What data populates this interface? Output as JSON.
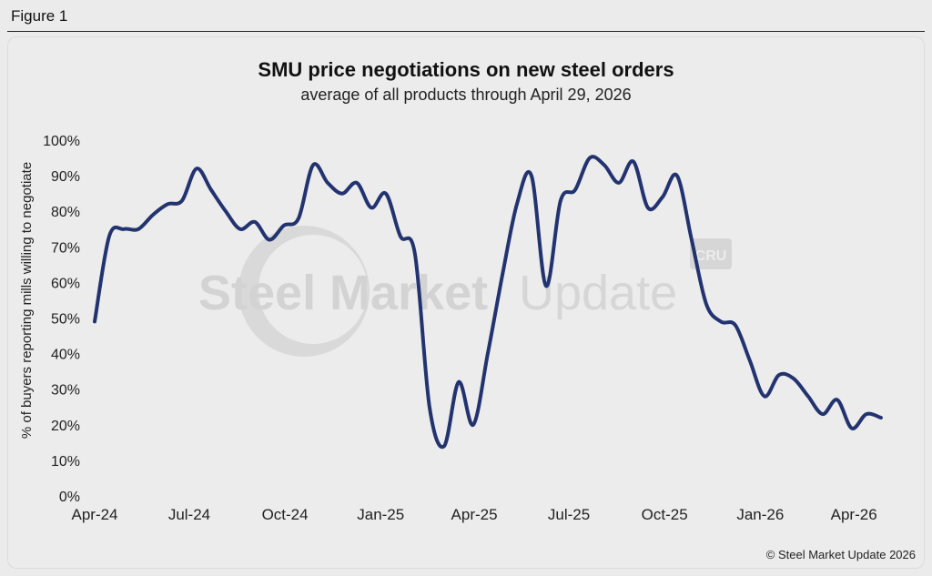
{
  "figure_label": "Figure 1",
  "copyright": "© Steel Market Update 2026",
  "watermark": {
    "text_bold": "Steel Market",
    "text_light": "Update",
    "badge": "CRU"
  },
  "colors": {
    "line": "#22336f",
    "background": "#ececec",
    "watermark": "#d6d6d6"
  },
  "chart_data": {
    "type": "line",
    "title": "SMU price negotiations on new steel orders",
    "subtitle": "average of all products through April 29, 2026",
    "xlabel": "",
    "ylabel": "% of buyers reporting mills willing to negotiate",
    "ylim": [
      0,
      100
    ],
    "yticks": [
      "0%",
      "10%",
      "20%",
      "30%",
      "40%",
      "50%",
      "60%",
      "70%",
      "80%",
      "90%",
      "100%"
    ],
    "xlim": [
      "2024-04-01",
      "2026-05-12"
    ],
    "xticks": [
      {
        "date": "2024-04-01",
        "label": "Apr-24"
      },
      {
        "date": "2024-07-01",
        "label": "Jul-24"
      },
      {
        "date": "2024-10-01",
        "label": "Oct-24"
      },
      {
        "date": "2025-01-01",
        "label": "Jan-25"
      },
      {
        "date": "2025-04-01",
        "label": "Apr-25"
      },
      {
        "date": "2025-07-01",
        "label": "Jul-25"
      },
      {
        "date": "2025-10-01",
        "label": "Oct-25"
      },
      {
        "date": "2026-01-01",
        "label": "Jan-26"
      },
      {
        "date": "2026-04-01",
        "label": "Apr-26"
      }
    ],
    "grid": false,
    "series": [
      {
        "values": [
          {
            "x": "2024-04-01",
            "y": 49
          },
          {
            "x": "2024-04-15",
            "y": 73
          },
          {
            "x": "2024-04-29",
            "y": 75
          },
          {
            "x": "2024-05-13",
            "y": 75
          },
          {
            "x": "2024-05-27",
            "y": 79
          },
          {
            "x": "2024-06-10",
            "y": 82
          },
          {
            "x": "2024-06-24",
            "y": 83
          },
          {
            "x": "2024-07-08",
            "y": 92
          },
          {
            "x": "2024-07-22",
            "y": 86
          },
          {
            "x": "2024-08-05",
            "y": 80
          },
          {
            "x": "2024-08-19",
            "y": 75
          },
          {
            "x": "2024-09-02",
            "y": 77
          },
          {
            "x": "2024-09-16",
            "y": 72
          },
          {
            "x": "2024-09-30",
            "y": 76
          },
          {
            "x": "2024-10-14",
            "y": 78
          },
          {
            "x": "2024-10-28",
            "y": 93
          },
          {
            "x": "2024-11-11",
            "y": 88
          },
          {
            "x": "2024-11-25",
            "y": 85
          },
          {
            "x": "2024-12-09",
            "y": 88
          },
          {
            "x": "2024-12-23",
            "y": 81
          },
          {
            "x": "2025-01-06",
            "y": 85
          },
          {
            "x": "2025-01-20",
            "y": 73
          },
          {
            "x": "2025-02-03",
            "y": 68
          },
          {
            "x": "2025-02-17",
            "y": 25
          },
          {
            "x": "2025-03-03",
            "y": 14
          },
          {
            "x": "2025-03-17",
            "y": 32
          },
          {
            "x": "2025-03-31",
            "y": 20
          },
          {
            "x": "2025-04-14",
            "y": 40
          },
          {
            "x": "2025-04-28",
            "y": 62
          },
          {
            "x": "2025-05-12",
            "y": 82
          },
          {
            "x": "2025-05-26",
            "y": 90
          },
          {
            "x": "2025-06-09",
            "y": 59
          },
          {
            "x": "2025-06-23",
            "y": 83
          },
          {
            "x": "2025-07-07",
            "y": 86
          },
          {
            "x": "2025-07-21",
            "y": 95
          },
          {
            "x": "2025-08-04",
            "y": 93
          },
          {
            "x": "2025-08-18",
            "y": 88
          },
          {
            "x": "2025-09-01",
            "y": 94
          },
          {
            "x": "2025-09-15",
            "y": 81
          },
          {
            "x": "2025-09-29",
            "y": 84
          },
          {
            "x": "2025-10-13",
            "y": 90
          },
          {
            "x": "2025-10-27",
            "y": 72
          },
          {
            "x": "2025-11-10",
            "y": 54
          },
          {
            "x": "2025-11-24",
            "y": 49
          },
          {
            "x": "2025-12-08",
            "y": 48
          },
          {
            "x": "2025-12-22",
            "y": 38
          },
          {
            "x": "2026-01-05",
            "y": 28
          },
          {
            "x": "2026-01-19",
            "y": 34
          },
          {
            "x": "2026-02-02",
            "y": 33
          },
          {
            "x": "2026-02-16",
            "y": 28
          },
          {
            "x": "2026-03-02",
            "y": 23
          },
          {
            "x": "2026-03-16",
            "y": 27
          },
          {
            "x": "2026-03-30",
            "y": 19
          },
          {
            "x": "2026-04-13",
            "y": 23
          },
          {
            "x": "2026-04-27",
            "y": 22
          }
        ]
      }
    ]
  }
}
